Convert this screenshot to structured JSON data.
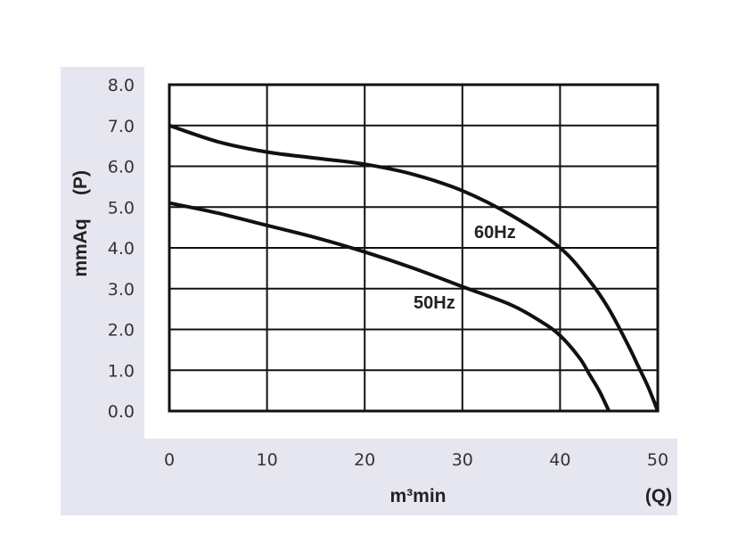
{
  "chart_data": {
    "type": "line",
    "title": "",
    "xlabel": "m³min",
    "x_quantity": "(Q)",
    "ylabel": "mmAq",
    "y_quantity": "(P)",
    "xlim": [
      0,
      50
    ],
    "ylim": [
      0,
      8
    ],
    "x_ticks": [
      "0",
      "10",
      "20",
      "30",
      "40",
      "50"
    ],
    "y_ticks": [
      "0.0",
      "1.0",
      "2.0",
      "3.0",
      "4.0",
      "5.0",
      "6.0",
      "7.0",
      "8.0"
    ],
    "grid": true,
    "series": [
      {
        "name": "60Hz",
        "x": [
          0,
          5,
          10,
          15,
          20,
          25,
          30,
          35,
          40,
          43,
          45,
          47,
          48,
          49,
          50
        ],
        "y": [
          7.0,
          6.6,
          6.35,
          6.2,
          6.05,
          5.8,
          5.4,
          4.8,
          4.0,
          3.2,
          2.5,
          1.6,
          1.1,
          0.6,
          0.0
        ]
      },
      {
        "name": "50Hz",
        "x": [
          0,
          5,
          10,
          15,
          20,
          25,
          30,
          35,
          38,
          40,
          42,
          43,
          44,
          45
        ],
        "y": [
          5.1,
          4.85,
          4.55,
          4.25,
          3.9,
          3.5,
          3.05,
          2.6,
          2.2,
          1.85,
          1.3,
          0.9,
          0.5,
          0.0
        ]
      }
    ]
  },
  "colors": {
    "panel": "#e6e6f0",
    "line": "#111111",
    "grid": "#111111"
  }
}
